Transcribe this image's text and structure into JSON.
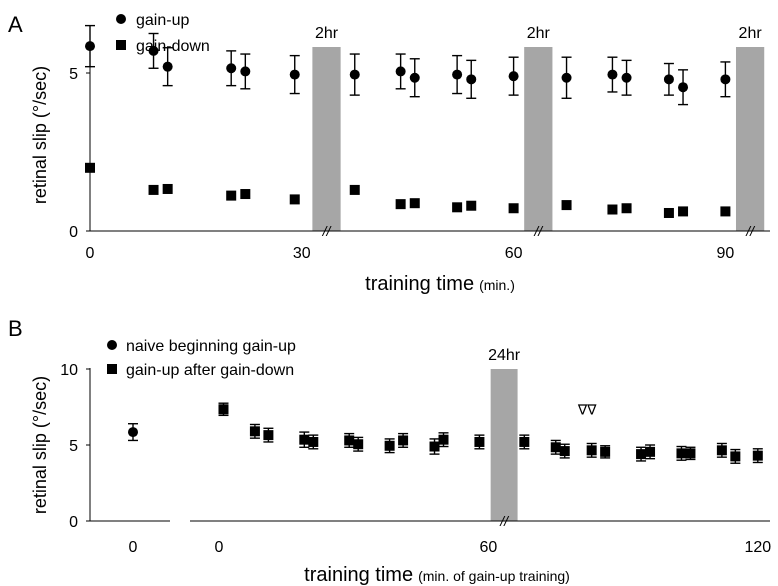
{
  "chart_data": [
    {
      "panel": "A",
      "type": "scatter",
      "xlabel": "training time",
      "xlabel_unit": "(min.)",
      "ylabel": "retinal slip (°/sec)",
      "xticks": [
        "0",
        "30",
        "60",
        "90"
      ],
      "yticks": [
        "0",
        "5"
      ],
      "xlim": [
        0,
        97
      ],
      "ylim": [
        0,
        7
      ],
      "legend_position": "top-left",
      "breaks": [
        {
          "label": "2hr",
          "x_from": 31.5,
          "x_to": 35.5
        },
        {
          "label": "2hr",
          "x_from": 61.5,
          "x_to": 65.5
        },
        {
          "label": "2hr",
          "x_from": 91.5,
          "x_to": 95.5
        }
      ],
      "series": [
        {
          "name": "gain-up",
          "marker": "circle",
          "x": [
            0,
            9,
            11,
            20,
            22,
            29,
            37.5,
            44,
            46,
            52,
            54,
            60,
            67.5,
            74,
            76,
            82,
            84,
            90
          ],
          "y": [
            5.85,
            5.7,
            5.2,
            5.15,
            5.05,
            4.95,
            4.95,
            5.05,
            4.85,
            4.95,
            4.8,
            4.9,
            4.85,
            4.95,
            4.85,
            4.8,
            4.55,
            4.8
          ],
          "err": [
            0.65,
            0.55,
            0.6,
            0.55,
            0.55,
            0.6,
            0.65,
            0.55,
            0.6,
            0.6,
            0.6,
            0.6,
            0.65,
            0.55,
            0.55,
            0.5,
            0.55,
            0.55
          ]
        },
        {
          "name": "gain-down",
          "marker": "square",
          "x": [
            0,
            9,
            11,
            20,
            22,
            29,
            37.5,
            44,
            46,
            52,
            54,
            60,
            67.5,
            74,
            76,
            82,
            84,
            90
          ],
          "y": [
            2.0,
            1.3,
            1.33,
            1.12,
            1.17,
            1.0,
            1.3,
            0.85,
            0.88,
            0.75,
            0.8,
            0.72,
            0.82,
            0.68,
            0.72,
            0.57,
            0.62,
            0.62
          ],
          "err": [
            0,
            0,
            0,
            0,
            0,
            0,
            0,
            0,
            0,
            0,
            0,
            0,
            0,
            0,
            0,
            0,
            0,
            0
          ]
        }
      ]
    },
    {
      "panel": "B",
      "type": "scatter",
      "xlabel": "training time",
      "xlabel_unit": "(min. of gain-up training)",
      "ylabel": "retinal slip (°/sec)",
      "xticks": [
        "0",
        "0",
        "60",
        "120"
      ],
      "yticks": [
        "0",
        "5",
        "10"
      ],
      "ylim": [
        0,
        10
      ],
      "legend_position": "top-left",
      "breaks": [
        {
          "label": "24hr",
          "x_from": 60.5,
          "x_to": 66.5
        }
      ],
      "annotation": "∇∇",
      "annotation_x": 82,
      "annotation_y": 7.0,
      "series": [
        {
          "name": "naive beginning gain-up",
          "marker": "circle",
          "x": [
            0
          ],
          "y": [
            5.85
          ],
          "err": [
            0.55
          ]
        },
        {
          "name": "gain-up after gain-down",
          "marker": "square",
          "x": [
            1,
            8,
            11,
            19,
            21,
            29,
            31,
            38,
            41,
            48,
            50,
            58,
            68,
            75,
            77,
            83,
            86,
            94,
            96,
            103,
            105,
            112,
            115,
            120
          ],
          "y": [
            7.35,
            5.9,
            5.65,
            5.35,
            5.2,
            5.3,
            5.05,
            4.95,
            5.3,
            4.9,
            5.35,
            5.2,
            5.2,
            4.85,
            4.6,
            4.65,
            4.55,
            4.4,
            4.55,
            4.45,
            4.45,
            4.65,
            4.25,
            4.3
          ],
          "err": [
            0.4,
            0.45,
            0.45,
            0.5,
            0.45,
            0.45,
            0.45,
            0.45,
            0.45,
            0.5,
            0.45,
            0.45,
            0.45,
            0.45,
            0.45,
            0.45,
            0.4,
            0.45,
            0.45,
            0.45,
            0.4,
            0.45,
            0.45,
            0.45
          ]
        }
      ]
    }
  ],
  "panels": {
    "a": {
      "letter": "A"
    },
    "b": {
      "letter": "B"
    }
  }
}
